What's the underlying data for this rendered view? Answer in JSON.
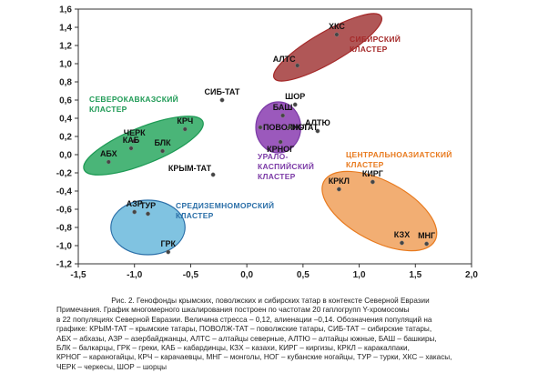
{
  "chart_data": {
    "type": "scatter",
    "xlim": [
      -1.5,
      2.0
    ],
    "ylim": [
      -1.2,
      1.6
    ],
    "x_ticks": [
      "-1,5",
      "-1,0",
      "-0,5",
      "0,0",
      "0,5",
      "1,0",
      "1,5",
      "2,0"
    ],
    "x_tick_values": [
      -1.5,
      -1.0,
      -0.5,
      0.0,
      0.5,
      1.0,
      1.5,
      2.0
    ],
    "y_ticks": [
      "1,6",
      "1,4",
      "1,2",
      "1,0",
      "0,8",
      "0,6",
      "0,4",
      "0,2",
      "0,0",
      "-0,2",
      "-0,4",
      "-0,6",
      "-0,8",
      "-1,0",
      "-1,2"
    ],
    "y_tick_values": [
      1.6,
      1.4,
      1.2,
      1.0,
      0.8,
      0.6,
      0.4,
      0.2,
      0.0,
      -0.2,
      -0.4,
      -0.6,
      -0.8,
      -1.0,
      -1.2
    ],
    "points": [
      {
        "label": "ХКС",
        "x": 0.8,
        "y": 1.32,
        "label_pos": "above"
      },
      {
        "label": "АЛТС",
        "x": 0.45,
        "y": 0.98,
        "label_pos": "left-above"
      },
      {
        "label": "СИБ-ТАТ",
        "x": -0.22,
        "y": 0.6,
        "label_pos": "above"
      },
      {
        "label": "ШОР",
        "x": 0.43,
        "y": 0.55,
        "label_pos": "above"
      },
      {
        "label": "БАШ",
        "x": 0.32,
        "y": 0.43,
        "label_pos": "above"
      },
      {
        "label": "ПОВОЛЖ-ТАТ",
        "x": 0.12,
        "y": 0.3,
        "label_pos": "right"
      },
      {
        "label": "НОГ",
        "x": 0.38,
        "y": 0.3,
        "label_pos": "right"
      },
      {
        "label": "АЛТЮ",
        "x": 0.63,
        "y": 0.26,
        "label_pos": "above"
      },
      {
        "label": "КРНОГ",
        "x": 0.3,
        "y": 0.14,
        "label_pos": "below"
      },
      {
        "label": "КРЫМ-ТАТ",
        "x": -0.3,
        "y": -0.22,
        "label_pos": "left-above"
      },
      {
        "label": "КРЧ",
        "x": -0.55,
        "y": 0.28,
        "label_pos": "above"
      },
      {
        "label": "ЧЕРК",
        "x": -1.0,
        "y": 0.15,
        "label_pos": "above"
      },
      {
        "label": "КАБ",
        "x": -1.03,
        "y": 0.07,
        "label_pos": "above"
      },
      {
        "label": "БЛК",
        "x": -0.75,
        "y": 0.04,
        "label_pos": "above"
      },
      {
        "label": "АБХ",
        "x": -1.23,
        "y": -0.08,
        "label_pos": "above"
      },
      {
        "label": "АЗР",
        "x": -1.0,
        "y": -0.63,
        "label_pos": "above"
      },
      {
        "label": "ТУР",
        "x": -0.88,
        "y": -0.65,
        "label_pos": "above"
      },
      {
        "label": "ГРК",
        "x": -0.7,
        "y": -1.07,
        "label_pos": "above"
      },
      {
        "label": "КИРГ",
        "x": 1.12,
        "y": -0.3,
        "label_pos": "above"
      },
      {
        "label": "КРКЛ",
        "x": 0.82,
        "y": -0.38,
        "label_pos": "above"
      },
      {
        "label": "КЗХ",
        "x": 1.38,
        "y": -0.97,
        "label_pos": "above"
      },
      {
        "label": "МНГ",
        "x": 1.6,
        "y": -0.98,
        "label_pos": "above"
      }
    ],
    "clusters": [
      {
        "lines": [
          "СИБИРСКИЙ",
          "КЛАСТЕР"
        ],
        "color": "#a52a2a",
        "fill": "#a23a3a",
        "ellipse": {
          "cx": 0.72,
          "cy": 1.18,
          "rx": 0.55,
          "ry": 0.17,
          "angle": -30
        }
      },
      {
        "lines": [
          "СЕВЕРОКАВКАЗСКИЙ",
          "КЛАСТЕР"
        ],
        "color": "#1e9a55",
        "fill": "#2aa860",
        "ellipse": {
          "cx": -0.92,
          "cy": 0.1,
          "rx": 0.57,
          "ry": 0.2,
          "angle": -22
        }
      },
      {
        "lines": [
          "УРАЛО-",
          "КАСПИЙСКИЙ",
          "КЛАСТЕР"
        ],
        "color": "#7b3aa6",
        "fill": "#8a3cb0",
        "ellipse": {
          "cx": 0.28,
          "cy": 0.3,
          "rx": 0.2,
          "ry": 0.28,
          "angle": 0
        }
      },
      {
        "lines": [
          "СРЕДИЗЕМНОМОРСКИЙ",
          "КЛАСТЕР"
        ],
        "color": "#2b6fa8",
        "fill": "#6ab8dc",
        "ellipse": {
          "cx": -0.88,
          "cy": -0.8,
          "rx": 0.33,
          "ry": 0.3,
          "angle": 0
        }
      },
      {
        "lines": [
          "ЦЕНТРАЛЬНОАЗИАТСКИЙ",
          "КЛАСТЕР"
        ],
        "color": "#e87a1e",
        "fill": "#f0a05a",
        "ellipse": {
          "cx": 1.18,
          "cy": -0.62,
          "rx": 0.56,
          "ry": 0.33,
          "angle": 28
        }
      }
    ]
  },
  "caption": {
    "title": "Рис. 2. Генофонды крымских, поволжских и сибирских татар в контексте Северной Евразии",
    "lines": [
      "Примечания. График многомерного шкалирования построен по частотам 20 гаплогрупп Y-хромосомы",
      "в 22 популяциях Северной Евразии. Величина стресса – 0,12, алиенации –0,14. Обозначения популяций на",
      "графике: КРЫМ-ТАТ – крымские татары, ПОВОЛЖ-ТАТ – поволжские татары, СИБ-ТАТ – сибирские татары,",
      "АБХ – абхазы, АЗР – азербайджанцы, АЛТС – алтайцы северные, АЛТЮ – алтайцы южные, БАШ – башкиры,",
      "БЛК – балкарцы, ГРК – греки, КАБ – кабардинцы, КЗХ – казахи, КИРГ – киргизы, КРКЛ – каракалпаки,",
      "КРНОГ – караногайцы, КРЧ – карачаевцы, МНГ – монголы, НОГ – кубанские ногайцы, ТУР – турки, ХКС – хакасы,",
      "ЧЕРК – черкесы, ШОР – шорцы"
    ]
  }
}
